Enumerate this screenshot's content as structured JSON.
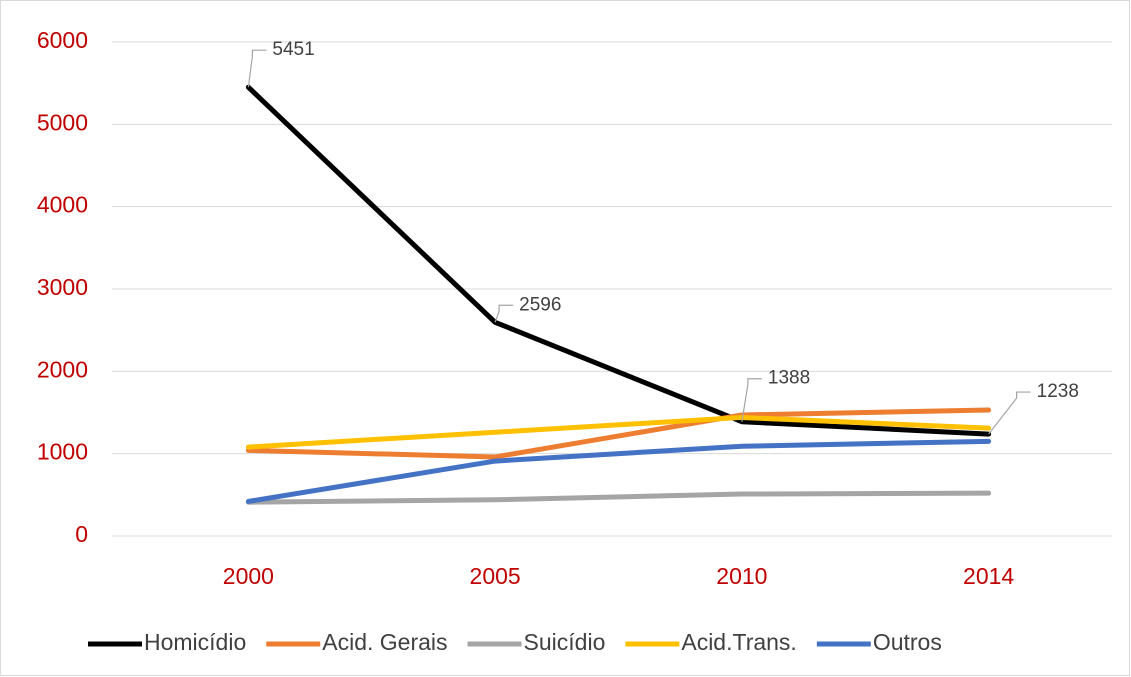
{
  "chart_data": {
    "type": "line",
    "categories": [
      "2000",
      "2005",
      "2010",
      "2014"
    ],
    "series": [
      {
        "name": "Homicídio",
        "color": "#000000",
        "values": [
          5451,
          2596,
          1388,
          1238
        ]
      },
      {
        "name": "Acid. Gerais",
        "color": "#ed7d31",
        "values": [
          1040,
          960,
          1470,
          1530
        ]
      },
      {
        "name": "Suicídio",
        "color": "#a5a5a5",
        "values": [
          410,
          440,
          510,
          520
        ]
      },
      {
        "name": "Acid.Trans.",
        "color": "#ffc000",
        "values": [
          1080,
          1260,
          1440,
          1310
        ]
      },
      {
        "name": "Outros",
        "color": "#4472c4",
        "values": [
          420,
          910,
          1090,
          1150
        ]
      }
    ],
    "ylim": [
      0,
      6000
    ],
    "yticks": [
      0,
      1000,
      2000,
      3000,
      4000,
      5000,
      6000
    ],
    "grid": true,
    "legend": "bottom",
    "data_labels_series": 0
  }
}
